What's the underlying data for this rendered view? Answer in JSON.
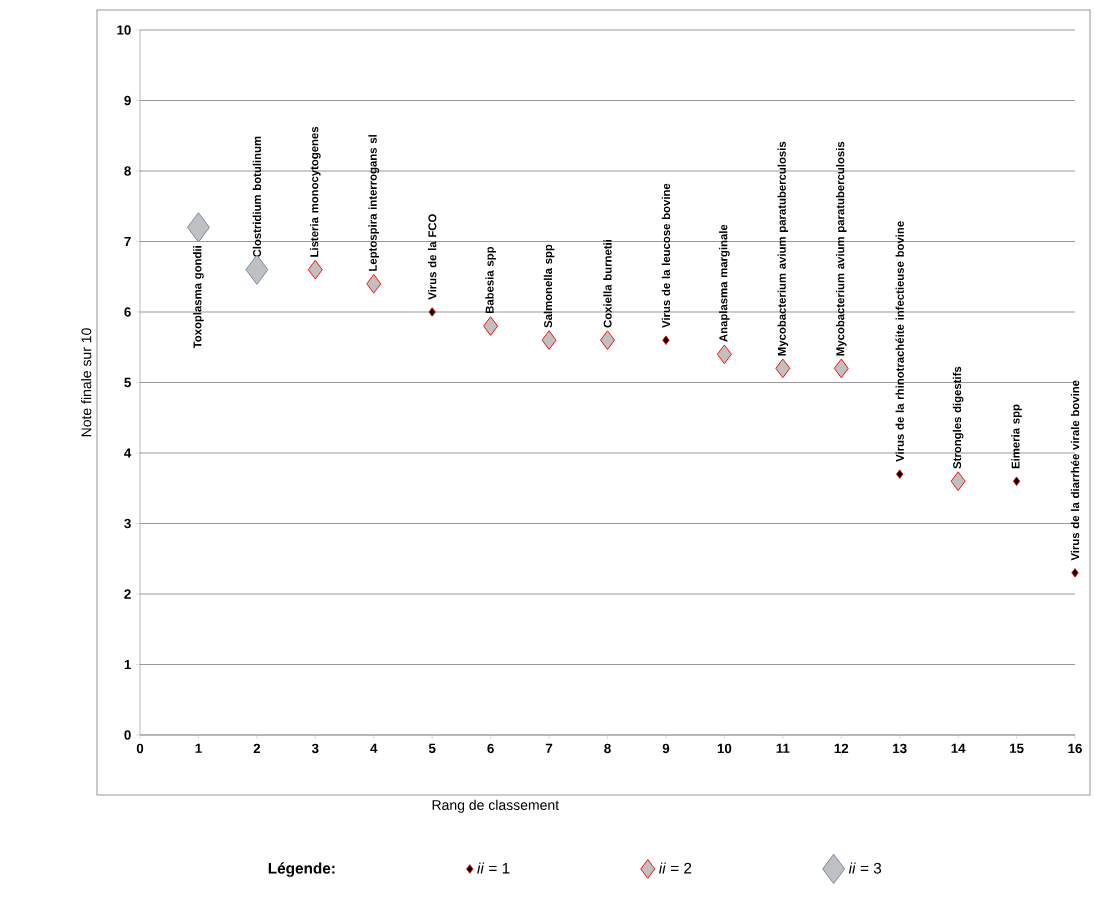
{
  "chart_data": {
    "type": "scatter",
    "xlabel": "Rang de classement",
    "ylabel": "Note finale sur 10",
    "legend_title": "Légende:",
    "legend": "bottom",
    "marker": "diamond",
    "grid": "y",
    "xlim": [
      0,
      16
    ],
    "ylim": [
      0,
      10
    ],
    "xticks": [
      0,
      1,
      2,
      3,
      4,
      5,
      6,
      7,
      8,
      9,
      10,
      11,
      12,
      13,
      14,
      15,
      16
    ],
    "yticks": [
      0,
      1,
      2,
      3,
      4,
      5,
      6,
      7,
      8,
      9,
      10
    ],
    "series": [
      {
        "name": "*ii* = 1",
        "color": "#000000",
        "x": [
          5,
          9,
          13,
          15,
          16
        ],
        "values": [
          6.0,
          5.6,
          3.7,
          3.6,
          2.3
        ]
      },
      {
        "name": "*ii* = 2",
        "color": "#c0c0c0",
        "x": [
          3,
          4,
          6,
          7,
          8,
          10,
          11,
          12,
          14
        ],
        "values": [
          6.6,
          6.4,
          5.8,
          5.6,
          5.6,
          5.4,
          5.2,
          5.2,
          3.6
        ]
      },
      {
        "name": "*ii* = 3",
        "color": "#c0c0c0",
        "x": [
          1,
          2
        ],
        "values": [
          7.2,
          6.6
        ]
      }
    ],
    "annotations": [
      {
        "text": "Toxoplasma  gondii",
        "x": 1,
        "y": 7.2
      },
      {
        "text": "Clostridium  botulinum",
        "x": 2,
        "y": 6.6
      },
      {
        "text": "Listeria monocytogenes",
        "x": 3,
        "y": 6.6
      },
      {
        "text": "Leptospira interrogans sl",
        "x": 4,
        "y": 6.4
      },
      {
        "text": "Virus de la FCO",
        "x": 5,
        "y": 6.0
      },
      {
        "text": "Babesia spp",
        "x": 6,
        "y": 5.8
      },
      {
        "text": "Salmonella spp",
        "x": 7,
        "y": 5.6
      },
      {
        "text": "Coxiella burnetii",
        "x": 8,
        "y": 5.6
      },
      {
        "text": "Virus de la leucose bovine",
        "x": 9,
        "y": 5.6
      },
      {
        "text": "Anaplasma   marginale",
        "x": 10,
        "y": 5.4
      },
      {
        "text": "Mycobacterium avium paratuberculosis",
        "x": 11,
        "y": 5.2
      },
      {
        "text": "Mycobacterium avium paratuberculosis",
        "x": 12,
        "y": 5.2
      },
      {
        "text": "Virus de la rhinotrachéite infectieuse bovine",
        "x": 13,
        "y": 3.7
      },
      {
        "text": "Strongles digestifs",
        "x": 14,
        "y": 3.6
      },
      {
        "text": "Eimeria spp",
        "x": 15,
        "y": 3.6
      },
      {
        "text": "Virus de la diarrhée virale bovine",
        "x": 16,
        "y": 2.3
      }
    ]
  }
}
